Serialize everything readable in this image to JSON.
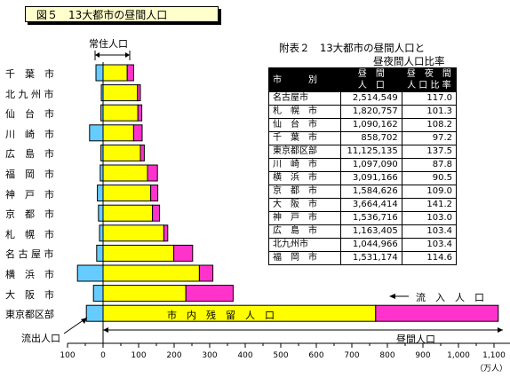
{
  "figure_title": "図５　13大都市の昼間人口",
  "table": {
    "title": "附表２　13大都市の昼間人口と",
    "title2": "昼夜間人口比率",
    "headers": [
      "市　　別",
      "昼　間\n人　口",
      "昼 夜 間\n人口比率"
    ],
    "header_col1": "市　　　別",
    "header_col2a": "昼　間",
    "header_col2b": "人　口",
    "header_col3a": "昼　夜　間",
    "header_col3b": "人 口 比 率",
    "rows": [
      {
        "city": "名古屋市",
        "population": "2,514,549",
        "ratio": "117.0"
      },
      {
        "city": "札　幌　市",
        "population": "1,820,757",
        "ratio": "101.3"
      },
      {
        "city": "仙　台　市",
        "population": "1,090,162",
        "ratio": "108.2"
      },
      {
        "city": "千　葉　市",
        "population": "858,702",
        "ratio": "97.2"
      },
      {
        "city": "東京都区部",
        "population": "11,125,135",
        "ratio": "137.5"
      },
      {
        "city": "川　崎　市",
        "population": "1,097,090",
        "ratio": "87.8"
      },
      {
        "city": "横　浜　市",
        "population": "3,091,166",
        "ratio": "90.5"
      },
      {
        "city": "京　都　市",
        "population": "1,584,626",
        "ratio": "109.0"
      },
      {
        "city": "大　阪　市",
        "population": "3,664,414",
        "ratio": "141.2"
      },
      {
        "city": "神　戸　市",
        "population": "1,536,716",
        "ratio": "103.0"
      },
      {
        "city": "広　島　市",
        "population": "1,163,405",
        "ratio": "103.4"
      },
      {
        "city": "北九州市",
        "population": "1,044,966",
        "ratio": "103.4"
      },
      {
        "city": "福　岡　市",
        "population": "1,531,174",
        "ratio": "114.6"
      }
    ]
  },
  "annotations": {
    "resident_population": "常住人口",
    "outflow": "流出人口",
    "inflow": "流　入　人　口",
    "stay": "市　内　残　留　人　口",
    "daytime_population": "昼間人口",
    "unit": "（万人）"
  },
  "colors": {
    "outflow": "#66ccff",
    "stay": "#ffff00",
    "inflow": "#ff33cc",
    "title_bg": "#ffffcc"
  },
  "chart_data": {
    "type": "bar",
    "orientation": "horizontal",
    "stacked": true,
    "title": "図５　13大都市の昼間人口",
    "xlim": [
      -100,
      1150
    ],
    "x_ticks": [
      -100,
      0,
      100,
      200,
      300,
      400,
      500,
      600,
      700,
      800,
      900,
      1000,
      1100
    ],
    "x_tick_labels": [
      "100",
      "0",
      "100",
      "200",
      "300",
      "400",
      "500",
      "600",
      "700",
      "800",
      "900",
      "1,000",
      "1,100"
    ],
    "unit": "（万人）",
    "categories": [
      "千　葉　市",
      "北 九 州 市",
      "仙　台　市",
      "川　崎　市",
      "広　島　市",
      "福　岡　市",
      "神　戸　市",
      "京　都　市",
      "札　幌　市",
      "名 古 屋 市",
      "横　浜　市",
      "大　阪　市",
      "東京都区部"
    ],
    "series": [
      {
        "name": "流出人口",
        "values": [
          -20,
          -5,
          -6,
          -38,
          -6,
          -8,
          -16,
          -13,
          -10,
          -18,
          -72,
          -27,
          -47
        ]
      },
      {
        "name": "市内残留人口",
        "values": [
          68,
          97,
          98,
          86,
          105,
          125,
          134,
          139,
          171,
          199,
          271,
          233,
          767
        ]
      },
      {
        "name": "流入人口",
        "values": [
          18,
          8,
          11,
          24,
          11,
          28,
          20,
          20,
          11,
          53,
          38,
          133,
          345
        ]
      }
    ]
  }
}
